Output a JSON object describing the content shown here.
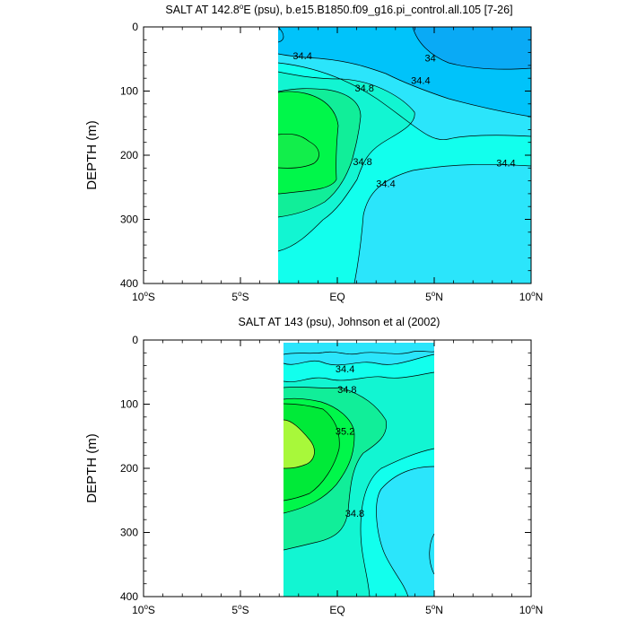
{
  "chart_data": [
    {
      "type": "contour",
      "title": "SALT AT 142.8°E (psu), b.e15.B1850.f09_g16.pi_control.all.105 [7-26]",
      "title_parts": {
        "pre": "SALT AT 142.8",
        "deg": "o",
        "post": "E (psu), b.e15.B1850.f09_g16.pi_control.all.105 [7-26]"
      },
      "xlabel": "",
      "ylabel": "DEPTH (m)",
      "xlim": [
        -10,
        10
      ],
      "ylim": [
        400,
        0
      ],
      "x_ticks": [
        {
          "value": -10,
          "main": "10",
          "deg": "o",
          "suffix": "S"
        },
        {
          "value": -5,
          "main": "5",
          "deg": "o",
          "suffix": "S"
        },
        {
          "value": 0,
          "main": "EQ",
          "deg": "",
          "suffix": ""
        },
        {
          "value": 5,
          "main": "5",
          "deg": "o",
          "suffix": "N"
        },
        {
          "value": 10,
          "main": "10",
          "deg": "o",
          "suffix": "N"
        }
      ],
      "y_ticks": [
        "0",
        "100",
        "200",
        "300",
        "400"
      ],
      "y_tick_values": [
        0,
        100,
        200,
        300,
        400
      ],
      "data_extent_lat": [
        -3.1,
        10
      ],
      "data_extent_depth": [
        0,
        400
      ],
      "colors": {
        "33.8": "#0aaaf5",
        "34.0": "#00c3fa",
        "34.2": "#2be5fb",
        "34.4": "#12ffed",
        "34.6": "#12f5d2",
        "34.8": "#11ee99",
        "35.0": "#00f74a"
      },
      "contour_labels": [
        {
          "text": "34.4",
          "lat": -1.8,
          "depth": 45
        },
        {
          "text": "34",
          "lat": 4.8,
          "depth": 48
        },
        {
          "text": "34.4",
          "lat": 4.3,
          "depth": 83
        },
        {
          "text": "34.8",
          "lat": 1.4,
          "depth": 95
        },
        {
          "text": "34.8",
          "lat": 1.3,
          "depth": 210
        },
        {
          "text": "34.4",
          "lat": 8.7,
          "depth": 212
        },
        {
          "text": "34.4",
          "lat": 2.5,
          "depth": 244
        }
      ]
    },
    {
      "type": "contour",
      "title": "SALT AT 143 (psu), Johnson et al (2002)",
      "xlabel": "",
      "ylabel": "DEPTH (m)",
      "xlim": [
        -10,
        10
      ],
      "ylim": [
        400,
        0
      ],
      "x_ticks": [
        {
          "value": -10,
          "main": "10",
          "deg": "o",
          "suffix": "S"
        },
        {
          "value": -5,
          "main": "5",
          "deg": "o",
          "suffix": "S"
        },
        {
          "value": 0,
          "main": "EQ",
          "deg": "",
          "suffix": ""
        },
        {
          "value": 5,
          "main": "5",
          "deg": "o",
          "suffix": "N"
        },
        {
          "value": 10,
          "main": "10",
          "deg": "o",
          "suffix": "N"
        }
      ],
      "y_ticks": [
        "0",
        "100",
        "200",
        "300",
        "400"
      ],
      "y_tick_values": [
        0,
        100,
        200,
        300,
        400
      ],
      "data_extent_lat": [
        -2.8,
        5
      ],
      "data_extent_depth": [
        5,
        400
      ],
      "colors": {
        "34.2": "#2be5fb",
        "34.4": "#12ffed",
        "34.6": "#12f5d2",
        "34.8": "#11ee99",
        "35.0": "#00f74a",
        "35.2": "#a8f83a"
      },
      "contour_labels": [
        {
          "text": "34.4",
          "lat": 0.4,
          "depth": 45
        },
        {
          "text": "34.8",
          "lat": 0.5,
          "depth": 77
        },
        {
          "text": "35.2",
          "lat": 0.4,
          "depth": 142
        },
        {
          "text": "34.8",
          "lat": 0.9,
          "depth": 270
        }
      ]
    }
  ]
}
